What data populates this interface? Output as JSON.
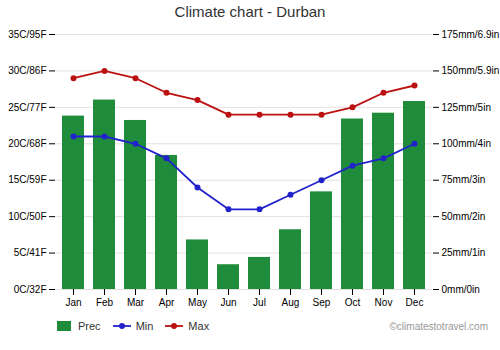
{
  "chart_data": {
    "type": "bar_line",
    "title": "Climate chart - Durban",
    "categories": [
      "Jan",
      "Feb",
      "Mar",
      "Apr",
      "May",
      "Jun",
      "Jul",
      "Aug",
      "Sep",
      "Oct",
      "Nov",
      "Dec"
    ],
    "series": [
      {
        "name": "Prec",
        "type": "bar",
        "axis": "y2",
        "color": "#1e8c3a",
        "values": [
          119,
          130,
          116,
          92,
          34,
          17,
          22,
          41,
          67,
          117,
          121,
          129
        ]
      },
      {
        "name": "Min",
        "type": "line",
        "marker": "circle",
        "color": "#2222cc",
        "values": [
          21,
          21,
          20,
          18,
          14,
          11,
          11,
          13,
          15,
          17,
          18,
          20
        ]
      },
      {
        "name": "Max",
        "type": "line",
        "marker": "circle",
        "color": "#bb1111",
        "values": [
          29,
          30,
          29,
          27,
          26,
          24,
          24,
          24,
          24,
          25,
          27,
          28
        ]
      }
    ],
    "ylim": [
      0,
      35
    ],
    "yticks": [
      {
        "value": 0,
        "label": "0C/32F"
      },
      {
        "value": 5,
        "label": "5C/41F"
      },
      {
        "value": 10,
        "label": "10C/50F"
      },
      {
        "value": 15,
        "label": "15C/59F"
      },
      {
        "value": 20,
        "label": "20C/68F"
      },
      {
        "value": 25,
        "label": "25C/77F"
      },
      {
        "value": 30,
        "label": "30C/86F"
      },
      {
        "value": 35,
        "label": "35C/95F"
      }
    ],
    "y2lim": [
      0,
      175
    ],
    "y2ticks": [
      {
        "value": 0,
        "label": "0mm/0in"
      },
      {
        "value": 25,
        "label": "25mm/1in"
      },
      {
        "value": 50,
        "label": "50mm/2in"
      },
      {
        "value": 75,
        "label": "75mm/3in"
      },
      {
        "value": 100,
        "label": "100mm/4in"
      },
      {
        "value": 125,
        "label": "125mm/5in"
      },
      {
        "value": 150,
        "label": "150mm/5.9in"
      },
      {
        "value": 175,
        "label": "175mm/6.9in"
      }
    ],
    "grid": true,
    "legend": "bottom",
    "annotations": [
      "©climatestotravel.com"
    ]
  }
}
